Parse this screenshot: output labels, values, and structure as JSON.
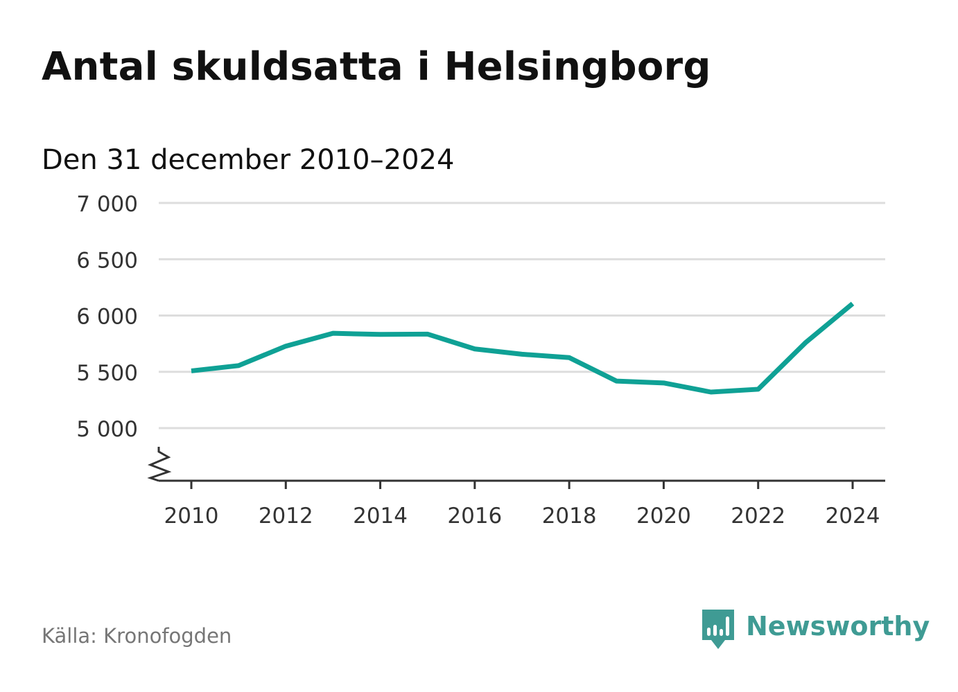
{
  "title": "Antal skuldsatta i Helsingborg",
  "subtitle": "Den 31 december 2010–2024",
  "source": "Källa: Kronofogden",
  "brand": {
    "name": "Newsworthy",
    "logo_icon": "newsworthy-bar-chart-bubble-icon",
    "color": "#3f9b94"
  },
  "colors": {
    "line": "#0fa195",
    "grid": "#dddddd",
    "axis": "#333333"
  },
  "chart_data": {
    "type": "line",
    "x": [
      2010,
      2011,
      2012,
      2013,
      2014,
      2015,
      2016,
      2017,
      2018,
      2019,
      2020,
      2021,
      2022,
      2023,
      2024
    ],
    "series": [
      {
        "values": [
          5508,
          5555,
          5728,
          5842,
          5832,
          5835,
          5703,
          5656,
          5626,
          5418,
          5401,
          5320,
          5345,
          5758,
          6106
        ]
      }
    ],
    "xticks": [
      "2010",
      "2012",
      "2014",
      "2016",
      "2018",
      "2020",
      "2022",
      "2024"
    ],
    "xtick_values": [
      2010,
      2012,
      2014,
      2016,
      2018,
      2020,
      2022,
      2024
    ],
    "yticks": [
      "5 000",
      "5 500",
      "6 000",
      "6 500",
      "7 000"
    ],
    "ytick_values": [
      5000,
      5500,
      6000,
      6500,
      7000
    ],
    "ylim": [
      5000,
      7000
    ],
    "xlim": [
      2010,
      2024
    ],
    "y_axis_break": true,
    "grid": true,
    "legend": false
  }
}
